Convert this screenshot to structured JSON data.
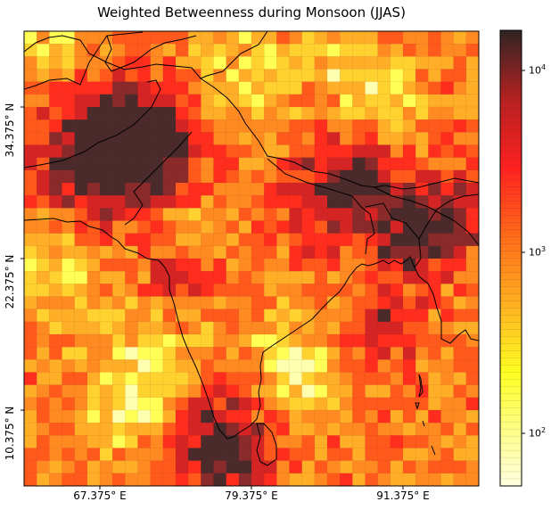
{
  "title": "Weighted Betweenness during Monsoon (JJAS)",
  "x_ticks": [
    "67.375° E",
    "79.375° E",
    "91.375° E"
  ],
  "y_ticks": [
    "34.375° N",
    "22.375° N",
    "10.375° N"
  ],
  "colorbar_ticks": [
    {
      "base": "10",
      "exp": "4"
    },
    {
      "base": "10",
      "exp": "3"
    },
    {
      "base": "10",
      "exp": "2"
    }
  ],
  "colors": {
    "low": "#ffffcc",
    "mid_low": "#ffff33",
    "mid": "#ff9922",
    "mid_high": "#ff2222",
    "high": "#3a2a2a",
    "coastline": "#000000"
  },
  "chart_data": {
    "type": "heatmap",
    "title": "Weighted Betweenness during Monsoon (JJAS)",
    "xlim": [
      61.0,
      97.0
    ],
    "ylim": [
      5.0,
      41.0
    ],
    "color_scale": "log",
    "clim": [
      50,
      17000
    ],
    "colormap": "hot_r"
  }
}
